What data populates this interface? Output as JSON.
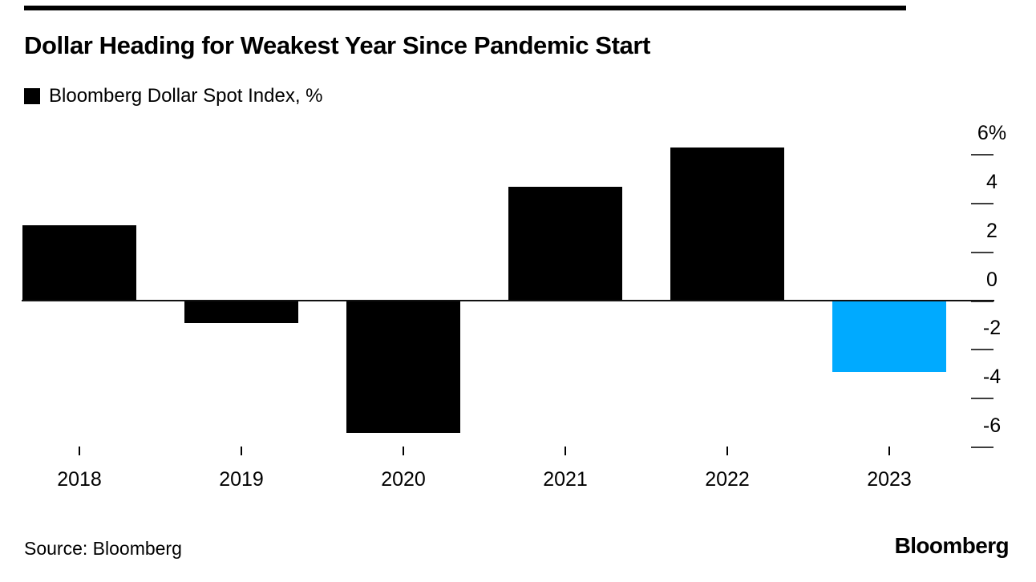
{
  "header": {
    "title": "Dollar Heading for Weakest Year Since Pandemic Start",
    "legend": {
      "marker_color": "#000000",
      "label": "Bloomberg Dollar Spot Index, %"
    }
  },
  "chart_data": {
    "type": "bar",
    "title": "Dollar Heading for Weakest Year Since Pandemic Start",
    "legend": [
      "Bloomberg Dollar Spot Index, %"
    ],
    "legend_position": "top-left",
    "categories": [
      "2018",
      "2019",
      "2020",
      "2021",
      "2022",
      "2023"
    ],
    "values": [
      3.1,
      -0.9,
      -5.4,
      4.7,
      6.3,
      -2.9
    ],
    "bar_colors": [
      "#000000",
      "#000000",
      "#000000",
      "#000000",
      "#000000",
      "#00aaff"
    ],
    "highlight": {
      "category": "2023",
      "color": "#00aaff"
    },
    "xlabel": "",
    "ylabel": "%",
    "axis_side": "right",
    "grid": false,
    "y_ticks": [
      6,
      4,
      2,
      0,
      -2,
      -4,
      -6
    ],
    "y_tick_labels": [
      "6%",
      "4",
      "2",
      "0",
      "-2",
      "-4",
      "-6"
    ],
    "ylim": [
      -7.2,
      6.7
    ]
  },
  "footer": {
    "source": "Source: Bloomberg",
    "brand": "Bloomberg"
  }
}
